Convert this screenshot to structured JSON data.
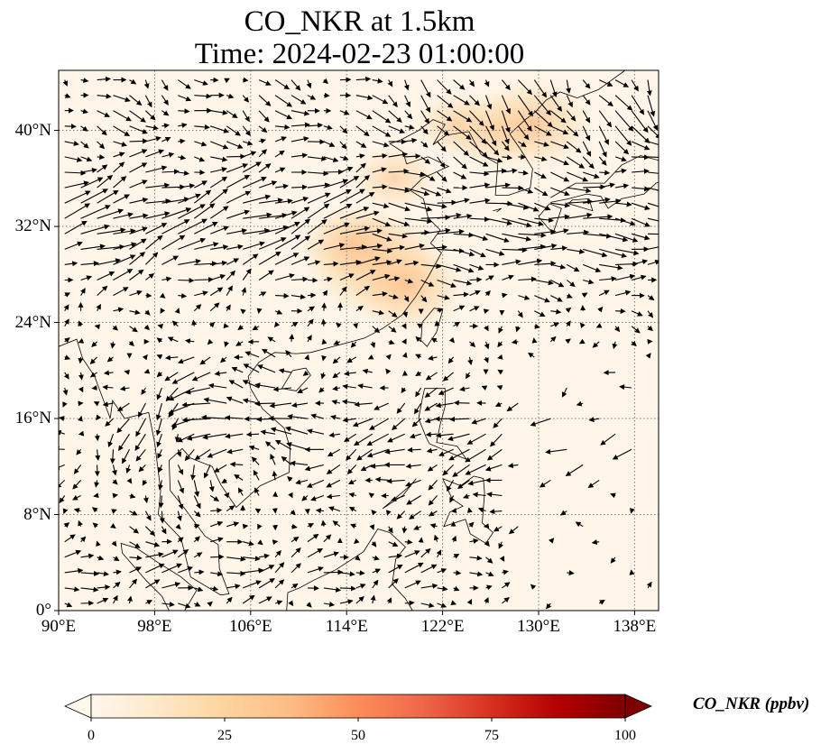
{
  "title": {
    "line1": "CO_NKR at 1.5km",
    "line2": "Time: 2024-02-23 01:00:00"
  },
  "map": {
    "extent": {
      "lon_min": 90,
      "lon_max": 140,
      "lat_min": 0,
      "lat_max": 45
    },
    "lon_ticks": [
      90,
      98,
      106,
      114,
      122,
      130,
      138
    ],
    "lat_ticks": [
      0,
      8,
      16,
      24,
      32,
      40
    ],
    "lon_labels": [
      "90°E",
      "98°E",
      "106°E",
      "114°E",
      "122°E",
      "130°E",
      "138°E"
    ],
    "lat_labels": [
      "0°",
      "8°N",
      "16°N",
      "24°N",
      "32°N",
      "40°N"
    ],
    "gridlines": "dotted",
    "background_color": "#fff5e8",
    "coastline_color": "#000000",
    "vector_color": "#000000"
  },
  "colorbar": {
    "label": "CO_NKR (ppbv)",
    "min": 0,
    "max": 100,
    "extend": "both",
    "tick_values": [
      0,
      25,
      50,
      75,
      100
    ],
    "tick_labels": [
      "0",
      "25",
      "50",
      "75",
      "100"
    ],
    "colormap": "OrRd",
    "colors": [
      "#fff7ec",
      "#fee8c8",
      "#fdd49e",
      "#fdbb84",
      "#fc8d59",
      "#ef6548",
      "#d7301f",
      "#b30000",
      "#7f0000"
    ]
  },
  "plumes": [
    {
      "lon": 116.5,
      "lat": 29.0,
      "value": 18
    },
    {
      "lon": 114.5,
      "lat": 30.5,
      "value": 12
    },
    {
      "lon": 119.0,
      "lat": 27.0,
      "value": 14
    },
    {
      "lon": 118.0,
      "lat": 36.0,
      "value": 8
    },
    {
      "lon": 126.0,
      "lat": 40.0,
      "value": 10
    },
    {
      "lon": 129.5,
      "lat": 40.5,
      "value": 14
    },
    {
      "lon": 123.0,
      "lat": 40.5,
      "value": 7
    }
  ]
}
